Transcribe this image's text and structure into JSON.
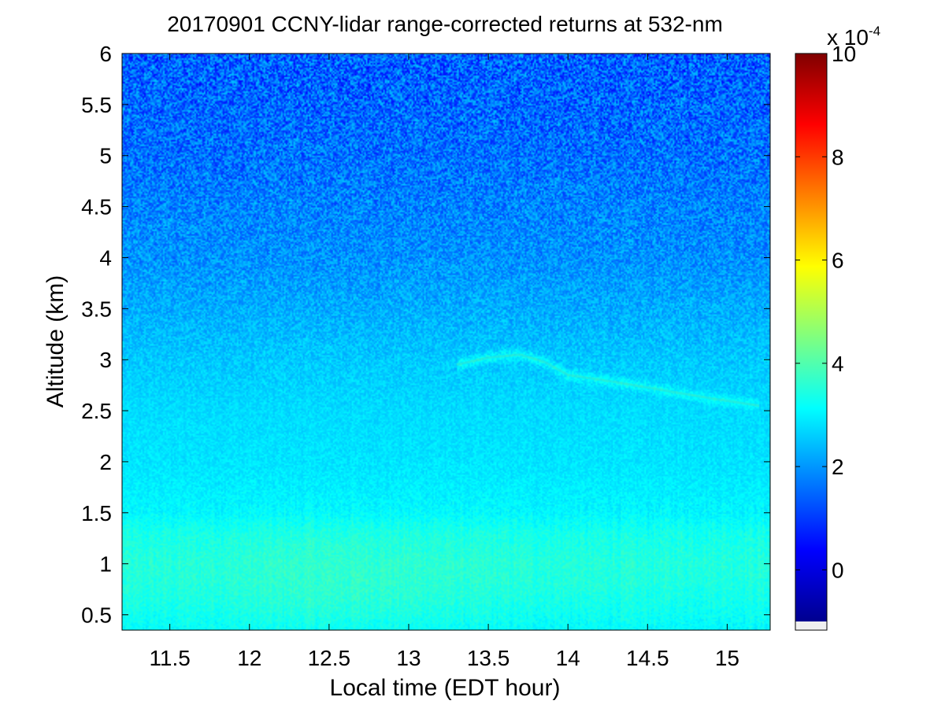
{
  "chart_data": {
    "type": "heatmap",
    "title": "20170901 CCNY-lidar range-corrected returns at 532-nm",
    "xlabel": "Local time (EDT hour)",
    "ylabel": "Altitude (km)",
    "xlim": [
      11.2,
      15.27
    ],
    "ylim": [
      0.35,
      6.0
    ],
    "x_ticks": [
      11.5,
      12,
      12.5,
      13,
      13.5,
      14,
      14.5,
      15
    ],
    "x_tick_labels": [
      "11.5",
      "12",
      "12.5",
      "13",
      "13.5",
      "14",
      "14.5",
      "15"
    ],
    "y_ticks": [
      0.5,
      1,
      1.5,
      2,
      2.5,
      3,
      3.5,
      4,
      4.5,
      5,
      5.5,
      6
    ],
    "y_tick_labels": [
      "0.5",
      "1",
      "1.5",
      "2",
      "2.5",
      "3",
      "3.5",
      "4",
      "4.5",
      "5",
      "5.5",
      "6"
    ],
    "colorbar": {
      "range": [
        -1,
        10
      ],
      "ticks": [
        0,
        2,
        4,
        6,
        8,
        10
      ],
      "tick_labels": [
        "0",
        "2",
        "4",
        "6",
        "8",
        "10"
      ],
      "multiplier_label": "x 10",
      "multiplier_exponent": "-4",
      "colormap": "jet"
    },
    "grid": false,
    "profile": {
      "altitude_km": [
        0.35,
        0.5,
        0.8,
        1.0,
        1.3,
        1.5,
        2.0,
        2.5,
        3.0,
        3.5,
        4.0,
        4.5,
        5.0,
        5.5,
        6.0
      ],
      "value_e4": [
        3.1,
        3.25,
        3.45,
        3.5,
        3.35,
        3.05,
        2.85,
        2.75,
        2.55,
        2.25,
        1.95,
        1.8,
        1.6,
        1.5,
        1.4
      ]
    },
    "features": {
      "aerosol_layer_top": {
        "time": [
          13.3,
          13.5,
          13.7,
          13.85,
          14.0,
          14.3,
          14.6,
          14.9,
          15.2
        ],
        "altitude_km": [
          2.95,
          3.02,
          3.05,
          2.98,
          2.85,
          2.78,
          2.7,
          2.62,
          2.55
        ],
        "value_e4": 3.3
      },
      "boundary_layer_max": {
        "time": 12.6,
        "altitude_km": 0.85,
        "value_e4": 3.7
      }
    }
  }
}
